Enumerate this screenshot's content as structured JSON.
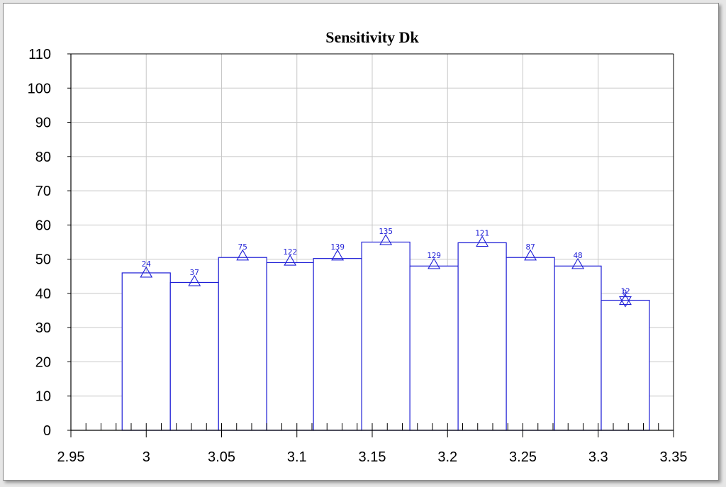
{
  "chart_data": {
    "type": "bar",
    "title": "Sensitivity Dk",
    "xlabel": "",
    "ylabel": "",
    "xlim": [
      2.95,
      3.35
    ],
    "ylim": [
      0,
      110
    ],
    "x_ticks": [
      "2.95",
      "3",
      "3.05",
      "3.1",
      "3.15",
      "3.2",
      "3.25",
      "3.3",
      "3.35"
    ],
    "y_ticks": [
      "0",
      "10",
      "20",
      "30",
      "40",
      "50",
      "60",
      "70",
      "80",
      "90",
      "100",
      "110"
    ],
    "grid": true,
    "bins": [
      {
        "x0": 2.984,
        "x1": 3.016,
        "value": 46,
        "marker": 46,
        "label": "24"
      },
      {
        "x0": 3.016,
        "x1": 3.048,
        "value": 43.2,
        "marker": 43.5,
        "label": "37"
      },
      {
        "x0": 3.048,
        "x1": 3.08,
        "value": 50.5,
        "marker": 51,
        "label": "75"
      },
      {
        "x0": 3.08,
        "x1": 3.111,
        "value": 49,
        "marker": 49.5,
        "label": "122"
      },
      {
        "x0": 3.111,
        "x1": 3.143,
        "value": 50.2,
        "marker": 51,
        "label": "139"
      },
      {
        "x0": 3.143,
        "x1": 3.175,
        "value": 55,
        "marker": 55.5,
        "label": "135"
      },
      {
        "x0": 3.175,
        "x1": 3.207,
        "value": 48,
        "marker": 48.5,
        "label": "129"
      },
      {
        "x0": 3.207,
        "x1": 3.239,
        "value": 54.8,
        "marker": 55,
        "label": "121"
      },
      {
        "x0": 3.239,
        "x1": 3.271,
        "value": 50.5,
        "marker": 51,
        "label": "87"
      },
      {
        "x0": 3.271,
        "x1": 3.302,
        "value": 48,
        "marker": 48.5,
        "label": "48"
      },
      {
        "x0": 3.302,
        "x1": 3.334,
        "value": 38,
        "marker": 38,
        "label": "12",
        "marker_down": true,
        "label2": "9"
      }
    ],
    "colors": {
      "bars": "#1f1fd6",
      "grid": "#c8c8c8",
      "axis": "#000000"
    }
  }
}
